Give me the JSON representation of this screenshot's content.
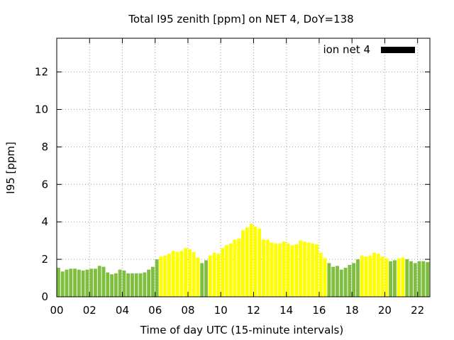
{
  "chart_data": {
    "type": "bar",
    "title": "Total I95 zenith [ppm] on NET 4, DoY=138",
    "xlabel": "Time of day UTC (15-minute intervals)",
    "ylabel": "I95 [ppm]",
    "xlim": [
      0,
      22.75
    ],
    "ylim": [
      0,
      13.8
    ],
    "x_ticks": [
      "00",
      "02",
      "04",
      "06",
      "08",
      "10",
      "12",
      "14",
      "16",
      "18",
      "20",
      "22"
    ],
    "y_ticks": [
      "0",
      "2",
      "4",
      "6",
      "8",
      "10",
      "12"
    ],
    "grid": true,
    "legend_position": "top-right",
    "legend": [
      {
        "label": "ion net 4",
        "color": "#000000"
      }
    ],
    "colors": {
      "green": "#7fbf3f",
      "yellow": "#ffff00"
    },
    "bars": [
      {
        "x": 0.0,
        "y": 1.55,
        "c": "green"
      },
      {
        "x": 0.25,
        "y": 1.35,
        "c": "green"
      },
      {
        "x": 0.5,
        "y": 1.45,
        "c": "green"
      },
      {
        "x": 0.75,
        "y": 1.5,
        "c": "green"
      },
      {
        "x": 1.0,
        "y": 1.5,
        "c": "green"
      },
      {
        "x": 1.25,
        "y": 1.45,
        "c": "green"
      },
      {
        "x": 1.5,
        "y": 1.4,
        "c": "green"
      },
      {
        "x": 1.75,
        "y": 1.45,
        "c": "green"
      },
      {
        "x": 2.0,
        "y": 1.5,
        "c": "green"
      },
      {
        "x": 2.25,
        "y": 1.5,
        "c": "green"
      },
      {
        "x": 2.5,
        "y": 1.65,
        "c": "green"
      },
      {
        "x": 2.75,
        "y": 1.6,
        "c": "green"
      },
      {
        "x": 3.0,
        "y": 1.3,
        "c": "green"
      },
      {
        "x": 3.25,
        "y": 1.2,
        "c": "green"
      },
      {
        "x": 3.5,
        "y": 1.25,
        "c": "green"
      },
      {
        "x": 3.75,
        "y": 1.45,
        "c": "green"
      },
      {
        "x": 4.0,
        "y": 1.4,
        "c": "green"
      },
      {
        "x": 4.25,
        "y": 1.25,
        "c": "green"
      },
      {
        "x": 4.5,
        "y": 1.25,
        "c": "green"
      },
      {
        "x": 4.75,
        "y": 1.25,
        "c": "green"
      },
      {
        "x": 5.0,
        "y": 1.25,
        "c": "green"
      },
      {
        "x": 5.25,
        "y": 1.3,
        "c": "green"
      },
      {
        "x": 5.5,
        "y": 1.45,
        "c": "green"
      },
      {
        "x": 5.75,
        "y": 1.6,
        "c": "green"
      },
      {
        "x": 6.0,
        "y": 2.0,
        "c": "green"
      },
      {
        "x": 6.25,
        "y": 2.15,
        "c": "yellow"
      },
      {
        "x": 6.5,
        "y": 2.2,
        "c": "yellow"
      },
      {
        "x": 6.75,
        "y": 2.3,
        "c": "yellow"
      },
      {
        "x": 7.0,
        "y": 2.45,
        "c": "yellow"
      },
      {
        "x": 7.25,
        "y": 2.4,
        "c": "yellow"
      },
      {
        "x": 7.5,
        "y": 2.45,
        "c": "yellow"
      },
      {
        "x": 7.75,
        "y": 2.6,
        "c": "yellow"
      },
      {
        "x": 8.0,
        "y": 2.55,
        "c": "yellow"
      },
      {
        "x": 8.25,
        "y": 2.4,
        "c": "yellow"
      },
      {
        "x": 8.5,
        "y": 2.1,
        "c": "yellow"
      },
      {
        "x": 8.75,
        "y": 1.8,
        "c": "green"
      },
      {
        "x": 9.0,
        "y": 1.95,
        "c": "green"
      },
      {
        "x": 9.25,
        "y": 2.2,
        "c": "yellow"
      },
      {
        "x": 9.5,
        "y": 2.35,
        "c": "yellow"
      },
      {
        "x": 9.75,
        "y": 2.3,
        "c": "yellow"
      },
      {
        "x": 10.0,
        "y": 2.6,
        "c": "yellow"
      },
      {
        "x": 10.25,
        "y": 2.75,
        "c": "yellow"
      },
      {
        "x": 10.5,
        "y": 2.85,
        "c": "yellow"
      },
      {
        "x": 10.75,
        "y": 3.05,
        "c": "yellow"
      },
      {
        "x": 11.0,
        "y": 3.1,
        "c": "yellow"
      },
      {
        "x": 11.25,
        "y": 3.55,
        "c": "yellow"
      },
      {
        "x": 11.5,
        "y": 3.7,
        "c": "yellow"
      },
      {
        "x": 11.75,
        "y": 3.9,
        "c": "yellow"
      },
      {
        "x": 12.0,
        "y": 3.75,
        "c": "yellow"
      },
      {
        "x": 12.25,
        "y": 3.65,
        "c": "yellow"
      },
      {
        "x": 12.5,
        "y": 3.05,
        "c": "yellow"
      },
      {
        "x": 12.75,
        "y": 3.05,
        "c": "yellow"
      },
      {
        "x": 13.0,
        "y": 2.9,
        "c": "yellow"
      },
      {
        "x": 13.25,
        "y": 2.85,
        "c": "yellow"
      },
      {
        "x": 13.5,
        "y": 2.85,
        "c": "yellow"
      },
      {
        "x": 13.75,
        "y": 2.95,
        "c": "yellow"
      },
      {
        "x": 14.0,
        "y": 2.85,
        "c": "yellow"
      },
      {
        "x": 14.25,
        "y": 2.75,
        "c": "yellow"
      },
      {
        "x": 14.5,
        "y": 2.8,
        "c": "yellow"
      },
      {
        "x": 14.75,
        "y": 3.0,
        "c": "yellow"
      },
      {
        "x": 15.0,
        "y": 2.95,
        "c": "yellow"
      },
      {
        "x": 15.25,
        "y": 2.9,
        "c": "yellow"
      },
      {
        "x": 15.5,
        "y": 2.85,
        "c": "yellow"
      },
      {
        "x": 15.75,
        "y": 2.8,
        "c": "yellow"
      },
      {
        "x": 16.0,
        "y": 2.35,
        "c": "yellow"
      },
      {
        "x": 16.25,
        "y": 2.05,
        "c": "yellow"
      },
      {
        "x": 16.5,
        "y": 1.8,
        "c": "green"
      },
      {
        "x": 16.75,
        "y": 1.6,
        "c": "green"
      },
      {
        "x": 17.0,
        "y": 1.65,
        "c": "green"
      },
      {
        "x": 17.25,
        "y": 1.45,
        "c": "green"
      },
      {
        "x": 17.5,
        "y": 1.55,
        "c": "green"
      },
      {
        "x": 17.75,
        "y": 1.7,
        "c": "green"
      },
      {
        "x": 18.0,
        "y": 1.8,
        "c": "green"
      },
      {
        "x": 18.25,
        "y": 2.0,
        "c": "green"
      },
      {
        "x": 18.5,
        "y": 2.2,
        "c": "yellow"
      },
      {
        "x": 18.75,
        "y": 2.15,
        "c": "yellow"
      },
      {
        "x": 19.0,
        "y": 2.2,
        "c": "yellow"
      },
      {
        "x": 19.25,
        "y": 2.35,
        "c": "yellow"
      },
      {
        "x": 19.5,
        "y": 2.3,
        "c": "yellow"
      },
      {
        "x": 19.75,
        "y": 2.15,
        "c": "yellow"
      },
      {
        "x": 20.0,
        "y": 2.05,
        "c": "yellow"
      },
      {
        "x": 20.25,
        "y": 1.9,
        "c": "green"
      },
      {
        "x": 20.5,
        "y": 1.95,
        "c": "green"
      },
      {
        "x": 20.75,
        "y": 2.05,
        "c": "yellow"
      },
      {
        "x": 21.0,
        "y": 2.1,
        "c": "yellow"
      },
      {
        "x": 21.25,
        "y": 2.0,
        "c": "green"
      },
      {
        "x": 21.5,
        "y": 1.9,
        "c": "green"
      },
      {
        "x": 21.75,
        "y": 1.8,
        "c": "green"
      },
      {
        "x": 22.0,
        "y": 1.9,
        "c": "green"
      },
      {
        "x": 22.25,
        "y": 1.9,
        "c": "green"
      },
      {
        "x": 22.5,
        "y": 1.85,
        "c": "green"
      }
    ]
  }
}
